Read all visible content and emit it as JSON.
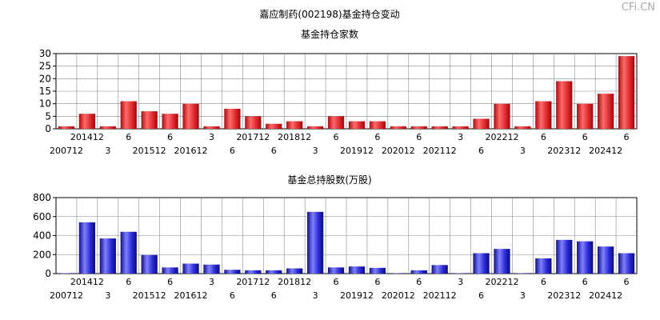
{
  "page_title": "嘉应制药(002198)基金持仓变动",
  "watermark": "CFi.CN",
  "colors": {
    "red_bar": "#e8383d",
    "blue_bar": "#3333cc",
    "grid": "#888888"
  },
  "chart_data": [
    {
      "type": "bar",
      "title": "基金持仓家数",
      "ylim": [
        0,
        30
      ],
      "yticks": [
        0,
        5,
        10,
        15,
        20,
        25,
        30
      ],
      "tick_labels_upper": [
        "",
        "201412",
        "",
        "6",
        "",
        "6",
        "",
        "3",
        "",
        "201712",
        "",
        "201812",
        "",
        "6",
        "",
        "6",
        "",
        "6",
        "",
        "3",
        "",
        "202212",
        "",
        "6",
        "",
        "6",
        "",
        "6"
      ],
      "tick_labels_lower": [
        "200712",
        "",
        "3",
        "",
        "201512",
        "",
        "201612",
        "",
        "6",
        "",
        "6",
        "",
        "3",
        "",
        "201912",
        "",
        "202012",
        "",
        "202112",
        "",
        "6",
        "",
        "3",
        "",
        "202312",
        "",
        "202412",
        ""
      ],
      "values": [
        1,
        6,
        1,
        11,
        7,
        6,
        10,
        1,
        8,
        5,
        2,
        3,
        1,
        5,
        3,
        3,
        1,
        1,
        1,
        1,
        4,
        10,
        1,
        11,
        19,
        10,
        14,
        29
      ]
    },
    {
      "type": "bar",
      "title": "基金总持股数(万股)",
      "ylim": [
        0,
        800
      ],
      "yticks": [
        0,
        200,
        400,
        600,
        800
      ],
      "tick_labels_upper": [
        "",
        "201412",
        "",
        "6",
        "",
        "6",
        "",
        "3",
        "",
        "201712",
        "",
        "201812",
        "",
        "6",
        "",
        "6",
        "",
        "6",
        "",
        "3",
        "",
        "202212",
        "",
        "6",
        "",
        "6",
        "",
        "6"
      ],
      "tick_labels_lower": [
        "200712",
        "",
        "3",
        "",
        "201512",
        "",
        "201612",
        "",
        "6",
        "",
        "6",
        "",
        "3",
        "",
        "201912",
        "",
        "202012",
        "",
        "202112",
        "",
        "6",
        "",
        "3",
        "",
        "202312",
        "",
        "202412",
        ""
      ],
      "values": [
        5,
        540,
        370,
        440,
        195,
        65,
        105,
        95,
        40,
        35,
        35,
        55,
        650,
        65,
        75,
        60,
        5,
        35,
        90,
        5,
        215,
        260,
        5,
        160,
        355,
        340,
        285,
        215
      ]
    }
  ]
}
